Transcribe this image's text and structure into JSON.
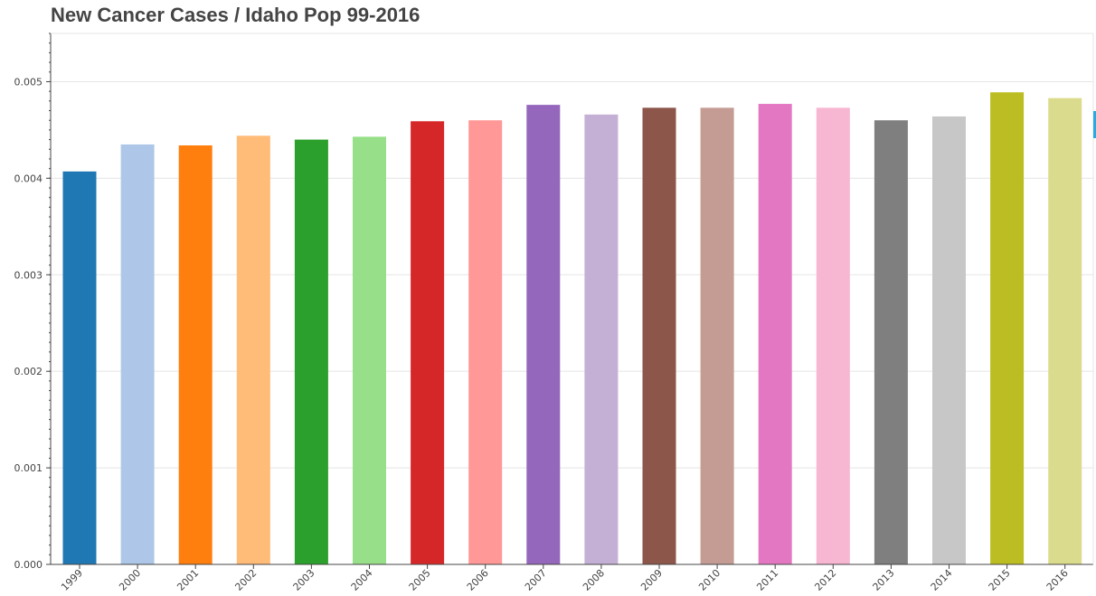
{
  "chart_data": {
    "type": "bar",
    "title": "New Cancer Cases / Idaho Pop 99-2016",
    "xlabel": "",
    "ylabel": "",
    "categories": [
      "1999",
      "2000",
      "2001",
      "2002",
      "2003",
      "2004",
      "2005",
      "2006",
      "2007",
      "2008",
      "2009",
      "2010",
      "2011",
      "2012",
      "2013",
      "2014",
      "2015",
      "2016"
    ],
    "values": [
      0.00407,
      0.00435,
      0.00434,
      0.00444,
      0.0044,
      0.00443,
      0.00459,
      0.0046,
      0.00476,
      0.00466,
      0.00473,
      0.00473,
      0.00477,
      0.00473,
      0.0046,
      0.00464,
      0.00489,
      0.00483
    ],
    "colors": [
      "#1f77b4",
      "#aec7e8",
      "#ff7f0e",
      "#ffbb78",
      "#2ca02c",
      "#98df8a",
      "#d62728",
      "#ff9896",
      "#9467bd",
      "#c5b0d5",
      "#8c564b",
      "#c49c94",
      "#e377c2",
      "#f7b6d2",
      "#7f7f7f",
      "#c7c7c7",
      "#bcbd22",
      "#dbdb8d"
    ],
    "ylim": [
      0,
      0.0055
    ],
    "yticks": [
      "0.000",
      "0.001",
      "0.002",
      "0.003",
      "0.004",
      "0.005"
    ],
    "ytick_values": [
      0,
      0.001,
      0.002,
      0.003,
      0.004,
      0.005
    ],
    "grid": true,
    "legend": "none"
  }
}
